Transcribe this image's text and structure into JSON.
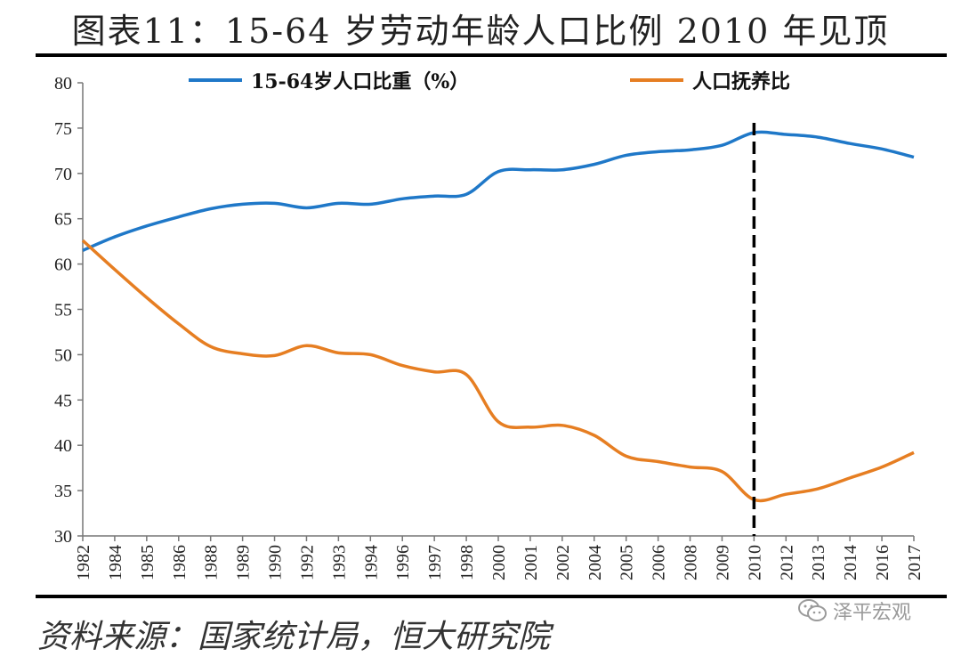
{
  "title": "图表11：15-64 岁劳动年龄人口比例 2010 年见顶",
  "source": "资料来源：国家统计局，恒大研究院",
  "watermark": {
    "text": "泽平宏观",
    "icon": "wechat-icon"
  },
  "colors": {
    "series1": "#1f78c8",
    "series2": "#e67e22",
    "peak_line": "#000000"
  },
  "chart_data": {
    "type": "line",
    "ylim": [
      30,
      80
    ],
    "yticks": [
      30,
      35,
      40,
      45,
      50,
      55,
      60,
      65,
      70,
      75,
      80
    ],
    "grid": false,
    "legend_position": "top",
    "x": [
      "1982",
      "1984",
      "1985",
      "1986",
      "1988",
      "1989",
      "1990",
      "1992",
      "1993",
      "1994",
      "1996",
      "1997",
      "1998",
      "2000",
      "2001",
      "2002",
      "2004",
      "2005",
      "2006",
      "2008",
      "2009",
      "2010",
      "2012",
      "2013",
      "2014",
      "2016",
      "2017"
    ],
    "series": [
      {
        "name": "15-64岁人口比重（%）",
        "values": [
          61.5,
          63.0,
          64.2,
          65.2,
          66.1,
          66.6,
          66.7,
          66.2,
          66.7,
          66.6,
          67.2,
          67.5,
          67.7,
          70.2,
          70.4,
          70.4,
          71.0,
          72.0,
          72.4,
          72.6,
          73.1,
          74.5,
          74.3,
          74.0,
          73.3,
          72.7,
          71.8
        ]
      },
      {
        "name": "人口抚养比",
        "values": [
          62.6,
          59.4,
          56.3,
          53.4,
          50.9,
          50.1,
          49.9,
          51.0,
          50.2,
          50.0,
          48.8,
          48.1,
          47.8,
          42.6,
          42.0,
          42.2,
          41.1,
          38.8,
          38.2,
          37.6,
          37.1,
          34.0,
          34.6,
          35.2,
          36.4,
          37.6,
          39.2
        ]
      }
    ],
    "annotations": [
      {
        "type": "vertical-dashed-line",
        "x": "2010"
      }
    ]
  }
}
